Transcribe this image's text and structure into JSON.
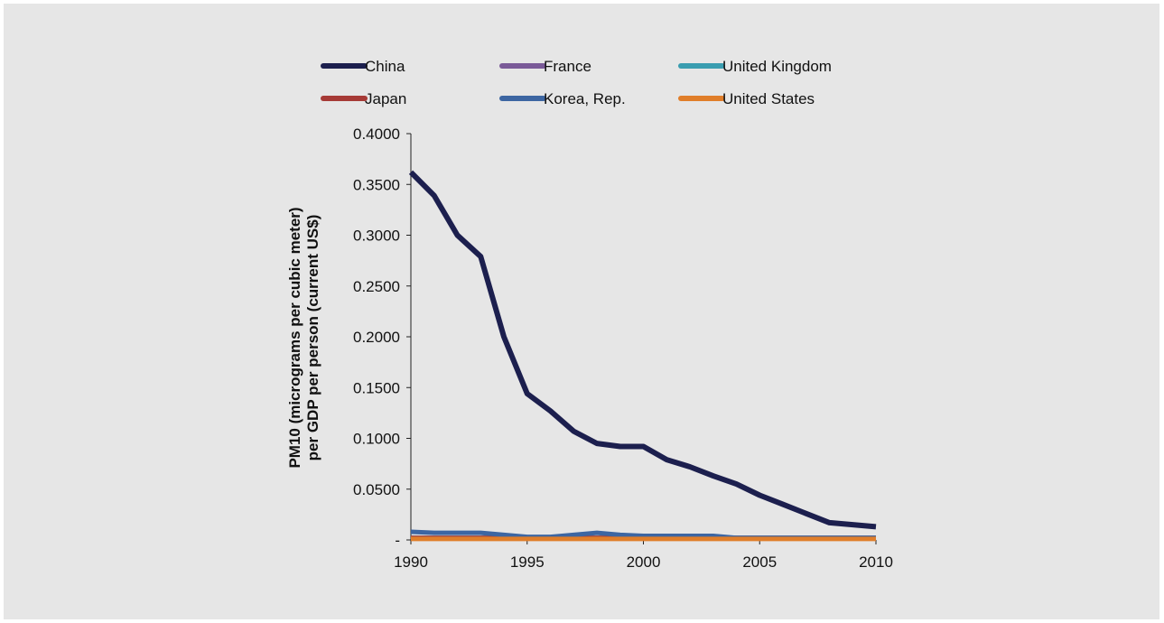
{
  "chart_data": {
    "type": "line",
    "title": "",
    "xlabel": "",
    "ylabel_lines": [
      "PM10 (micrograms per cubic meter)",
      "per GDP per person (current US$)"
    ],
    "xlim": [
      1990,
      2010
    ],
    "ylim": [
      0,
      0.4
    ],
    "x_ticks": [
      1990,
      1995,
      2000,
      2005,
      2010
    ],
    "x_tick_labels": [
      "1990",
      "1995",
      "2000",
      "2005",
      "2010"
    ],
    "y_ticks": [
      0,
      0.05,
      0.1,
      0.15,
      0.2,
      0.25,
      0.3,
      0.35,
      0.4
    ],
    "y_tick_labels": [
      "-",
      "0.0500",
      "0.1000",
      "0.1500",
      "0.2000",
      "0.2500",
      "0.3000",
      "0.3500",
      "0.4000"
    ],
    "grid": false,
    "legend_position": "top",
    "x": [
      1990,
      1991,
      1992,
      1993,
      1994,
      1995,
      1996,
      1997,
      1998,
      1999,
      2000,
      2001,
      2002,
      2003,
      2004,
      2005,
      2006,
      2007,
      2008,
      2009,
      2010
    ],
    "series": [
      {
        "name": "China",
        "color": "#1c1f4e",
        "values": [
          0.362,
          0.339,
          0.3,
          0.279,
          0.2,
          0.144,
          0.127,
          0.107,
          0.095,
          0.092,
          0.092,
          0.079,
          0.072,
          0.063,
          0.055,
          0.044,
          0.035,
          0.026,
          0.017,
          0.015,
          0.013
        ]
      },
      {
        "name": "France",
        "color": "#7a5a98",
        "values": [
          0.002,
          0.002,
          0.002,
          0.002,
          0.002,
          0.002,
          0.002,
          0.002,
          0.002,
          0.002,
          0.002,
          0.002,
          0.002,
          0.002,
          0.002,
          0.002,
          0.002,
          0.002,
          0.002,
          0.002,
          0.002
        ]
      },
      {
        "name": "United Kingdom",
        "color": "#3a9db0",
        "values": [
          0.002,
          0.002,
          0.002,
          0.002,
          0.002,
          0.002,
          0.002,
          0.002,
          0.002,
          0.002,
          0.002,
          0.002,
          0.002,
          0.002,
          0.002,
          0.002,
          0.002,
          0.002,
          0.002,
          0.002,
          0.002
        ]
      },
      {
        "name": "Japan",
        "color": "#a63a36",
        "values": [
          0.002,
          0.002,
          0.002,
          0.002,
          0.002,
          0.002,
          0.002,
          0.002,
          0.002,
          0.002,
          0.002,
          0.002,
          0.002,
          0.002,
          0.002,
          0.002,
          0.002,
          0.002,
          0.002,
          0.002,
          0.002
        ]
      },
      {
        "name": "Korea, Rep.",
        "color": "#3d66a2",
        "values": [
          0.008,
          0.007,
          0.007,
          0.007,
          0.005,
          0.003,
          0.003,
          0.005,
          0.007,
          0.005,
          0.004,
          0.004,
          0.004,
          0.004,
          0.002,
          0.002,
          0.002,
          0.002,
          0.002,
          0.002,
          0.002
        ]
      },
      {
        "name": "United States",
        "color": "#e07e2a",
        "values": [
          0.001,
          0.001,
          0.001,
          0.001,
          0.001,
          0.001,
          0.001,
          0.001,
          0.001,
          0.001,
          0.001,
          0.001,
          0.001,
          0.001,
          0.001,
          0.001,
          0.001,
          0.001,
          0.001,
          0.001,
          0.001
        ]
      }
    ]
  }
}
